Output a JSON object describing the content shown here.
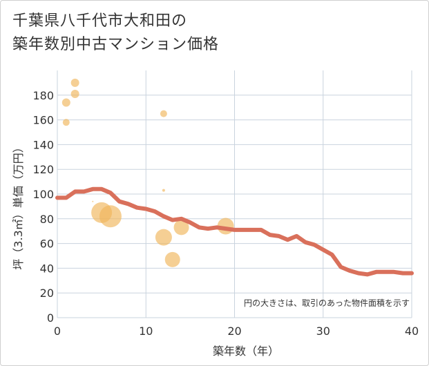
{
  "title_line1": "千葉県八千代市大和田の",
  "title_line2": "築年数別中古マンション価格",
  "note": "円の大きさは、取引のあった物件面積を示す",
  "colors": {
    "line": "#d9705b",
    "bubble": "#f0b55a",
    "grid": "#c9d3de",
    "background": "#ffffff"
  },
  "chart_data": {
    "type": "scatter",
    "xlabel": "築年数（年）",
    "ylabel": "坪（3.3㎡）単価（万円）",
    "xlim": [
      0,
      40
    ],
    "ylim": [
      0,
      200
    ],
    "xticks": [
      0,
      10,
      20,
      30,
      40
    ],
    "yticks": [
      0,
      20,
      40,
      60,
      80,
      100,
      120,
      140,
      160,
      180
    ],
    "bubbles": [
      {
        "x": 1,
        "y": 174,
        "r": 6
      },
      {
        "x": 1,
        "y": 158,
        "r": 5
      },
      {
        "x": 2,
        "y": 190,
        "r": 6
      },
      {
        "x": 2,
        "y": 181,
        "r": 6
      },
      {
        "x": 4,
        "y": 94,
        "r": 1
      },
      {
        "x": 5,
        "y": 85,
        "r": 15
      },
      {
        "x": 6,
        "y": 82,
        "r": 16
      },
      {
        "x": 12,
        "y": 165,
        "r": 5
      },
      {
        "x": 12,
        "y": 103,
        "r": 2
      },
      {
        "x": 12,
        "y": 65,
        "r": 12
      },
      {
        "x": 13,
        "y": 47,
        "r": 11
      },
      {
        "x": 14,
        "y": 73,
        "r": 11
      },
      {
        "x": 19,
        "y": 74,
        "r": 12
      }
    ],
    "line": {
      "x": [
        0,
        1,
        2,
        3,
        4,
        5,
        6,
        7,
        8,
        9,
        10,
        11,
        12,
        13,
        14,
        15,
        16,
        17,
        18,
        19,
        20,
        21,
        22,
        23,
        24,
        25,
        26,
        27,
        28,
        29,
        30,
        31,
        32,
        33,
        34,
        35,
        36,
        37,
        38,
        39,
        40
      ],
      "y": [
        97,
        97,
        102,
        102,
        104,
        104,
        101,
        94,
        92,
        89,
        88,
        86,
        82,
        79,
        80,
        77,
        73,
        72,
        73,
        72,
        71,
        71,
        71,
        71,
        67,
        66,
        63,
        66,
        61,
        59,
        55,
        51,
        41,
        38,
        36,
        35,
        37,
        37,
        37,
        36,
        36
      ]
    }
  }
}
